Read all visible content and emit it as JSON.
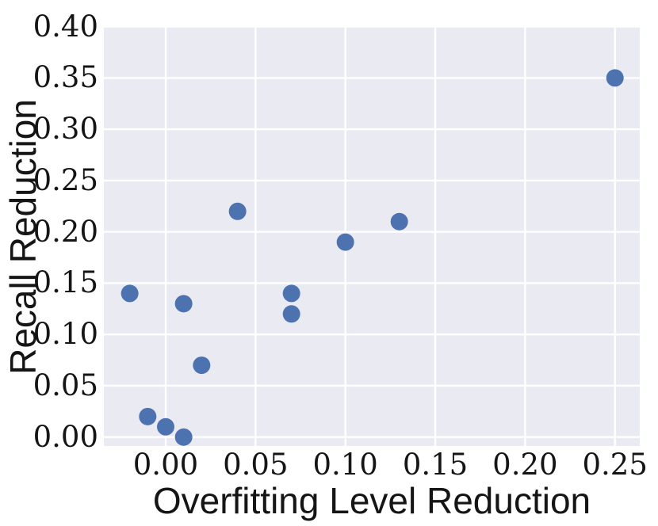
{
  "figure": {
    "background": "#FFFFFF",
    "text_color": "#151515"
  },
  "chart_data": {
    "type": "scatter",
    "title": "",
    "xlabel": "Overfitting Level Reduction",
    "ylabel": "Recall Reduction",
    "x_ticks": [
      "0.00",
      "0.05",
      "0.10",
      "0.15",
      "0.20",
      "0.25"
    ],
    "y_ticks": [
      "0.00",
      "0.05",
      "0.10",
      "0.15",
      "0.20",
      "0.25",
      "0.30",
      "0.35",
      "0.40"
    ],
    "xlim": [
      -0.0344,
      0.2638
    ],
    "ylim": [
      -0.0087,
      0.4005
    ],
    "grid": true,
    "legend": "none",
    "plot_background": "#EAEAF2",
    "gridline_color": "#FFFFFF",
    "marker_color": "#4C72B0",
    "marker_radius_px": 11,
    "points": [
      {
        "x": -0.02,
        "y": 0.14
      },
      {
        "x": -0.01,
        "y": 0.02
      },
      {
        "x": 0.0,
        "y": 0.01
      },
      {
        "x": 0.01,
        "y": 0.0
      },
      {
        "x": 0.01,
        "y": 0.13
      },
      {
        "x": 0.02,
        "y": 0.07
      },
      {
        "x": 0.04,
        "y": 0.22
      },
      {
        "x": 0.07,
        "y": 0.12
      },
      {
        "x": 0.07,
        "y": 0.14
      },
      {
        "x": 0.1,
        "y": 0.19
      },
      {
        "x": 0.13,
        "y": 0.21
      },
      {
        "x": 0.25,
        "y": 0.35
      }
    ]
  }
}
